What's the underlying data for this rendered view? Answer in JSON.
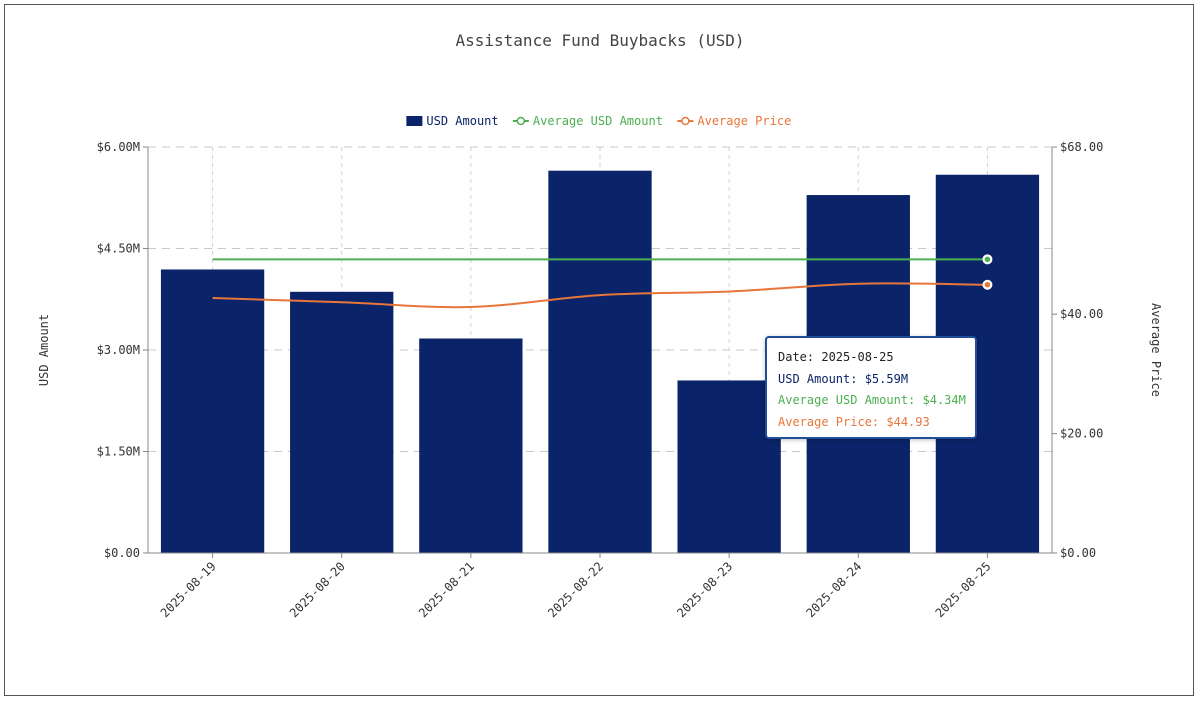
{
  "chart_data": {
    "type": "bar",
    "title": "Assistance Fund Buybacks (USD)",
    "categories": [
      "2025-08-19",
      "2025-08-20",
      "2025-08-21",
      "2025-08-22",
      "2025-08-23",
      "2025-08-24",
      "2025-08-25"
    ],
    "series": [
      {
        "name": "USD Amount",
        "type": "bar",
        "axis": "left",
        "color": "#0b2469",
        "values": [
          4.19,
          3.86,
          3.17,
          5.65,
          2.55,
          5.29,
          5.59
        ]
      },
      {
        "name": "Average USD Amount",
        "type": "line",
        "axis": "left",
        "color": "#4caf50",
        "values": [
          4.34,
          4.34,
          4.34,
          4.34,
          4.34,
          4.34,
          4.34
        ]
      },
      {
        "name": "Average Price",
        "type": "line",
        "axis": "right",
        "color": "#e8763a",
        "values": [
          42.7,
          42.0,
          41.2,
          43.2,
          43.8,
          45.1,
          44.93
        ]
      }
    ],
    "ylabel": "USD Amount",
    "ylabel_right": "Average Price",
    "ylim": [
      0,
      6
    ],
    "ylim_right": [
      0,
      68
    ],
    "yticks": [
      "$0.00",
      "$1.50M",
      "$3.00M",
      "$4.50M",
      "$6.00M"
    ],
    "yticks_right": [
      "$0.00",
      "$20.00",
      "$40.00",
      "$68.00"
    ],
    "legend_position": "top-center",
    "grid": true
  },
  "tooltip": {
    "date": "Date: 2025-08-25",
    "usd_amount": "USD Amount: $5.59M",
    "average_usd_amount": "Average USD Amount: $4.34M",
    "average_price": "Average Price: $44.93"
  }
}
